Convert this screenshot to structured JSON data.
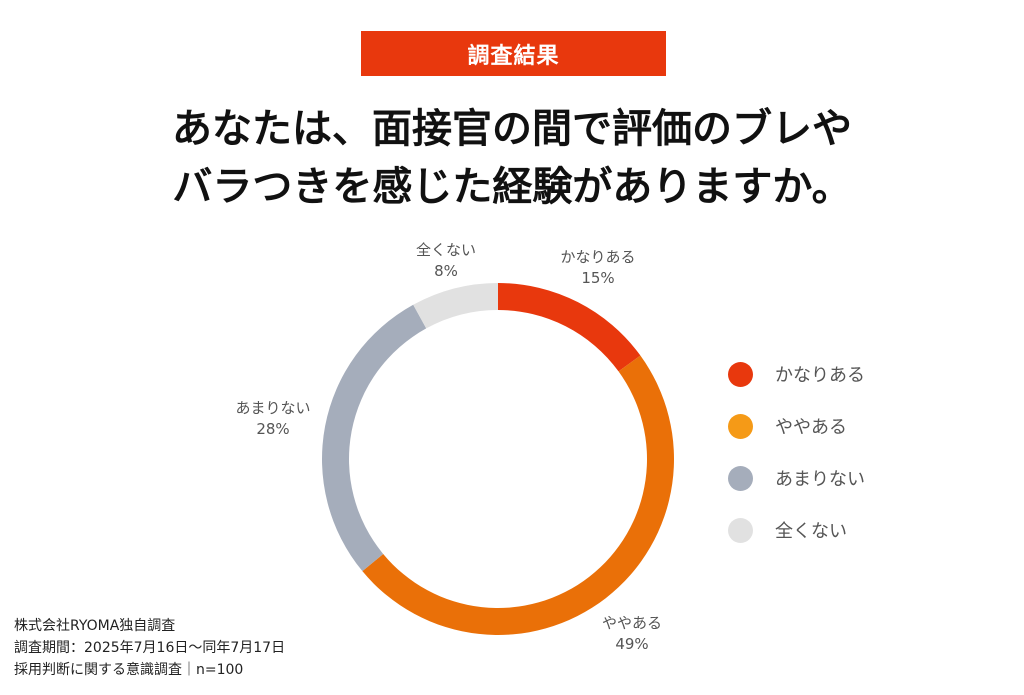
{
  "badge": "調査結果",
  "title_lines": [
    "あなたは、面接官の間で評価のブレや",
    "バラつきを感じた経験がありますか。"
  ],
  "chart_data": {
    "type": "pie",
    "style": "donut",
    "categories": [
      "かなりある",
      "ややある",
      "あまりない",
      "全くない"
    ],
    "values": [
      15,
      49,
      28,
      8
    ],
    "value_labels": [
      "15%",
      "49%",
      "28%",
      "8%"
    ],
    "colors": [
      "#e8380d",
      "#ea7008",
      "#a5adbb",
      "#e1e1e1"
    ],
    "legend_colors": [
      "#e8380d",
      "#f59a17",
      "#a5adbb",
      "#e1e1e1"
    ],
    "legend_placement": "right"
  },
  "footer": [
    "株式会社RYOMA独自調査",
    "調査期間：2025年7月16日〜同年7月17日",
    "採用判断に関する意識調査｜n=100"
  ],
  "watermark": "RYOMA"
}
